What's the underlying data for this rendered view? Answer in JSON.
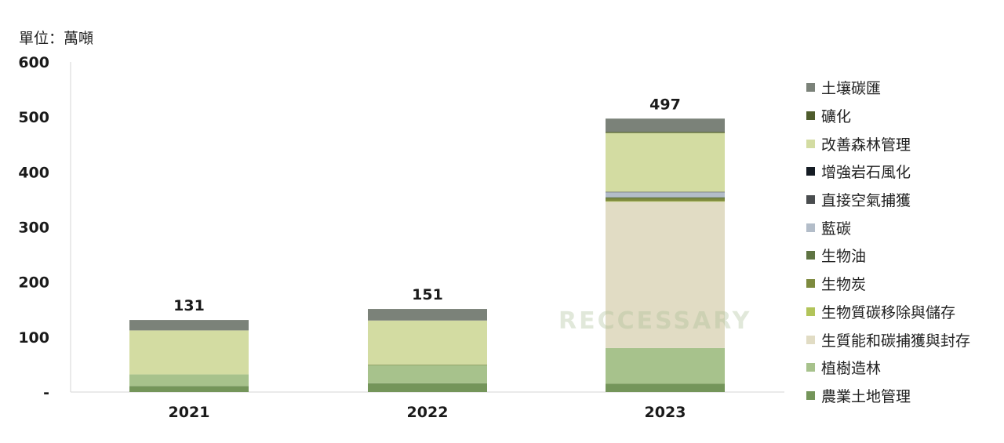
{
  "unit_label": "單位：萬噸",
  "watermark": "RECCESSARY",
  "chart_data": {
    "type": "bar",
    "stacked": true,
    "categories": [
      "2021",
      "2022",
      "2023"
    ],
    "totals": [
      131,
      151,
      497
    ],
    "ylim": [
      0,
      600
    ],
    "yticks": [
      0,
      100,
      200,
      300,
      400,
      500,
      600
    ],
    "ytick_labels": [
      "-",
      "100",
      "200",
      "300",
      "400",
      "500",
      "600"
    ],
    "grid": false,
    "legend_position": "right",
    "series": [
      {
        "name": "農業土地管理",
        "color": "#74955a",
        "values": [
          11,
          16,
          15
        ]
      },
      {
        "name": "植樹造林",
        "color": "#a7c28c",
        "values": [
          21,
          33,
          65
        ]
      },
      {
        "name": "生質能和碳捕獲與封存",
        "color": "#e1dcc4",
        "values": [
          0,
          0,
          266
        ]
      },
      {
        "name": "生物質碳移除與儲存",
        "color": "#b2c45a",
        "values": [
          0,
          0,
          1
        ]
      },
      {
        "name": "生物炭",
        "color": "#7d8a3e",
        "values": [
          0,
          1,
          5
        ]
      },
      {
        "name": "生物油",
        "color": "#5f7443",
        "values": [
          0,
          0,
          2
        ]
      },
      {
        "name": "藍碳",
        "color": "#b3bdc9",
        "values": [
          0,
          0,
          9
        ]
      },
      {
        "name": "直接空氣捕獲",
        "color": "#4a4d4f",
        "values": [
          0,
          0,
          1
        ]
      },
      {
        "name": "增強岩石風化",
        "color": "#151c24",
        "values": [
          0,
          0,
          0
        ]
      },
      {
        "name": "改善森林管理",
        "color": "#d3dca2",
        "values": [
          80,
          80,
          107
        ]
      },
      {
        "name": "礦化",
        "color": "#4e5c2c",
        "values": [
          0,
          0,
          2
        ]
      },
      {
        "name": "土壤碳匯",
        "color": "#7b8279",
        "values": [
          19,
          21,
          24
        ]
      }
    ]
  }
}
